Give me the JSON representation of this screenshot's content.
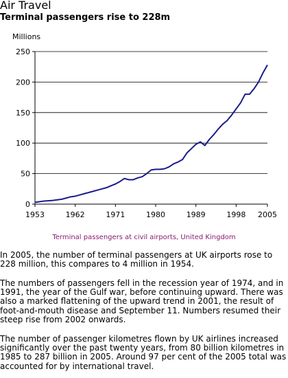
{
  "header": {
    "title": "Air Travel",
    "subtitle": "Terminal passengers rise to 228m"
  },
  "chart_data": {
    "type": "line",
    "title": "Terminal passengers rise to 228m",
    "ylabel": "Millions",
    "xlabel": "",
    "ylim": [
      0,
      250
    ],
    "xlim": [
      1953,
      2005
    ],
    "yticks": [
      0,
      50,
      100,
      150,
      200,
      250
    ],
    "xticks": [
      1953,
      1962,
      1971,
      1980,
      1989,
      1998,
      2005
    ],
    "grid": "horizontal",
    "line_color": "#1a1a8c",
    "series": [
      {
        "x": [
          1953,
          1954,
          1955,
          1956,
          1957,
          1958,
          1959,
          1960,
          1961,
          1962,
          1963,
          1964,
          1965,
          1966,
          1967,
          1968,
          1969,
          1970,
          1971,
          1972,
          1973,
          1974,
          1975,
          1976,
          1977,
          1978,
          1979,
          1980,
          1981,
          1982,
          1983,
          1984,
          1985,
          1986,
          1987,
          1988,
          1989,
          1990,
          1991,
          1992,
          1993,
          1994,
          1995,
          1996,
          1997,
          1998,
          1999,
          2000,
          2001,
          2002,
          2003,
          2004,
          2005
        ],
        "y": [
          3,
          4,
          5,
          5.5,
          6,
          7,
          8,
          10,
          12,
          13,
          15,
          17,
          19,
          21,
          23,
          25,
          27,
          30,
          33,
          37,
          42,
          40,
          40,
          43,
          45,
          50,
          56,
          57,
          57,
          58,
          61,
          66,
          69,
          73,
          84,
          91,
          98,
          102,
          96,
          106,
          114,
          123,
          131,
          137,
          146,
          156,
          166,
          180,
          180,
          189,
          200,
          215,
          228
        ]
      }
    ]
  },
  "caption": "Terminal passengers at civil airports, United Kingdom",
  "paragraphs": [
    "In 2005, the number of terminal passengers at UK airports rose to 228 million, this compares to 4 million in 1954.",
    "The numbers of passengers fell in the recession year of 1974, and in 1991, the year of the Gulf war, before continuing upward. There was also a marked flattening of the upward trend in 2001, the result of foot-and-mouth disease and September 11. Numbers resumed their steep rise from 2002 onwards.",
    "The number of passenger kilometres flown by UK airlines increased significantly over the past twenty years, from 80 billion kilometres in 1985 to 287 billion in 2005. Around 97 per cent of the 2005 total was accounted for by international travel."
  ]
}
